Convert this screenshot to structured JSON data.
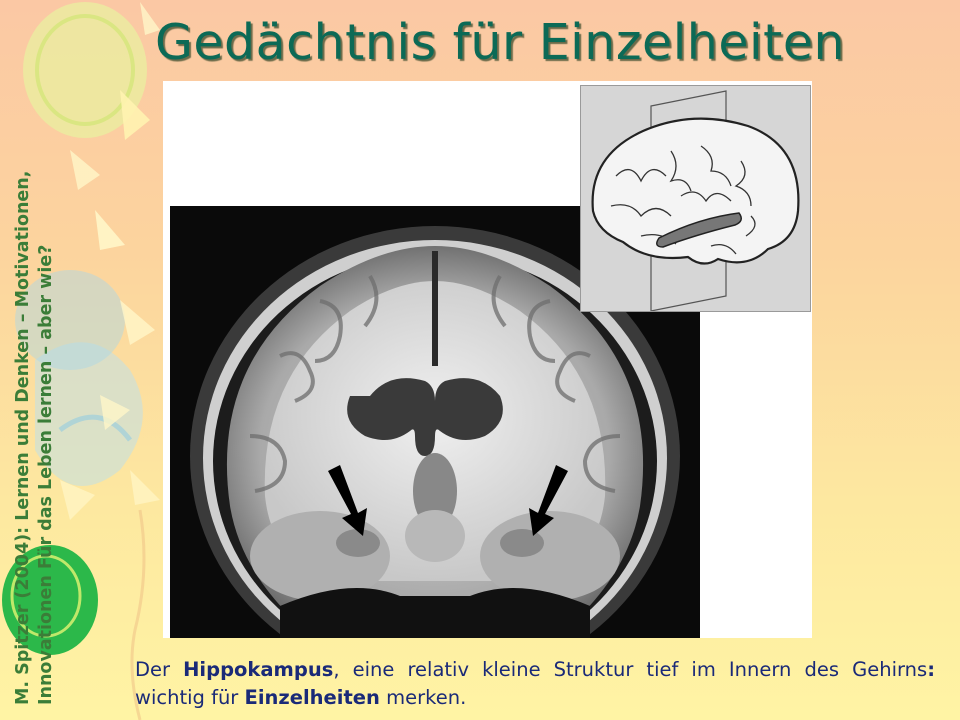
{
  "slide": {
    "title": "Gedächtnis für Einzelheiten"
  },
  "sidebar": {
    "line1": "M. Spitzer (2004): Lernen und Denken – Motivationen,",
    "line2": "Innovationen Für das Leben lernen – aber wie?"
  },
  "caption": {
    "part1": "Der ",
    "bold1": "Hippokampus",
    "part2": ", eine relativ kleine Struktur tief im Innern des Gehirns",
    "bold2": ":",
    "part3": " wichtig für ",
    "bold3": "Einzelheiten",
    "part4": " merken."
  },
  "colors": {
    "title": "#0c6a56",
    "sidebar_text": "#3b7d38",
    "caption_text": "#1a2a78"
  },
  "icons": [
    "balloon-decoration",
    "mri-brain-scan",
    "brain-diagram",
    "arrow-icon"
  ]
}
